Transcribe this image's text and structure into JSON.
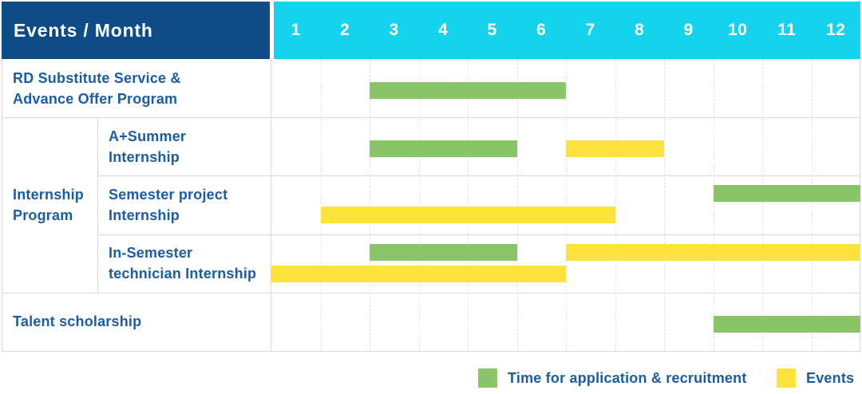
{
  "table": {
    "corner_title": "Events / Month",
    "months": [
      "1",
      "2",
      "3",
      "4",
      "5",
      "6",
      "7",
      "8",
      "9",
      "10",
      "11",
      "12"
    ]
  },
  "colors": {
    "header_bg": "#0D4C87",
    "month_header_bg": "#13D3EF",
    "header_text": "#FFFFFF",
    "label_text": "#1A5CA6",
    "recruitment": "#8AC667",
    "event": "#FFE33D",
    "grid": "#DBDBDB"
  },
  "chart_data": {
    "type": "bar",
    "subtype": "gantt-timeline",
    "title": "Events / Month",
    "x_unit": "month",
    "x_ticks": [
      1,
      2,
      3,
      4,
      5,
      6,
      7,
      8,
      9,
      10,
      11,
      12
    ],
    "x_range": [
      1,
      12
    ],
    "grid": true,
    "legend_position": "bottom-right",
    "legend": [
      {
        "key": "recruitment",
        "label": "Time for application & recruitment",
        "color": "#8AC667"
      },
      {
        "key": "event",
        "label": "Events",
        "color": "#FFE33D"
      }
    ],
    "group_label": "Internship Program",
    "group_label_lines": [
      "Internship",
      "Program"
    ],
    "rows": [
      {
        "group": "",
        "label": "RD Substitute Service & Advance Offer Program",
        "label_lines": [
          "RD Substitute Service &",
          "Advance Offer Program"
        ],
        "bars": [
          {
            "series": "recruitment",
            "start_month": 3,
            "end_month": 6,
            "lane": "center"
          }
        ]
      },
      {
        "group": "Internship Program",
        "label": "A+Summer Internship",
        "label_lines": [
          "A+Summer",
          "Internship"
        ],
        "bars": [
          {
            "series": "recruitment",
            "start_month": 3,
            "end_month": 5,
            "lane": "center"
          },
          {
            "series": "event",
            "start_month": 7,
            "end_month": 8,
            "lane": "center"
          }
        ]
      },
      {
        "group": "Internship Program",
        "label": "Semester project Internship",
        "label_lines": [
          "Semester project",
          "Internship"
        ],
        "bars": [
          {
            "series": "recruitment",
            "start_month": 10,
            "end_month": 12,
            "lane": "upper"
          },
          {
            "series": "event",
            "start_month": 2,
            "end_month": 7,
            "lane": "lower"
          }
        ]
      },
      {
        "group": "Internship Program",
        "label": "In-Semester technician Internship",
        "label_lines": [
          "In-Semester",
          "technician Internship"
        ],
        "bars": [
          {
            "series": "recruitment",
            "start_month": 3,
            "end_month": 5,
            "lane": "upper"
          },
          {
            "series": "event",
            "start_month": 7,
            "end_month": 12,
            "lane": "upper"
          },
          {
            "series": "event",
            "start_month": 1,
            "end_month": 6,
            "lane": "lower"
          }
        ]
      },
      {
        "group": "",
        "label": "Talent scholarship",
        "label_lines": [
          "Talent scholarship"
        ],
        "bars": [
          {
            "series": "recruitment",
            "start_month": 10,
            "end_month": 12,
            "lane": "center"
          }
        ]
      }
    ]
  }
}
